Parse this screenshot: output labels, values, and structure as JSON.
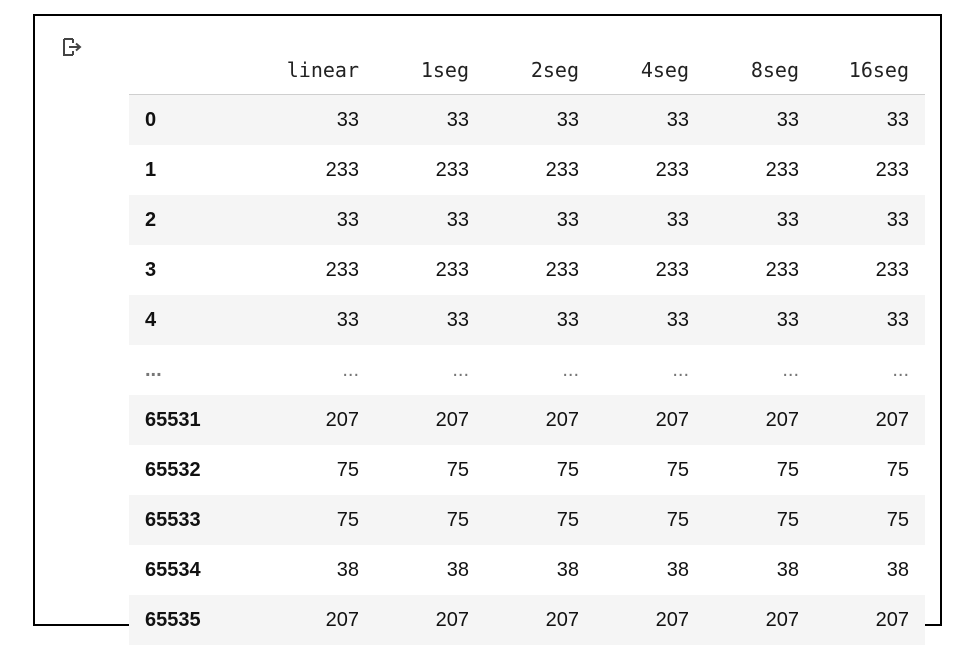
{
  "output_icon": "output-arrow-icon",
  "table": {
    "columns": [
      "linear",
      "1seg",
      "2seg",
      "4seg",
      "8seg",
      "16seg"
    ],
    "rows": [
      {
        "index": "0",
        "values": [
          "33",
          "33",
          "33",
          "33",
          "33",
          "33"
        ]
      },
      {
        "index": "1",
        "values": [
          "233",
          "233",
          "233",
          "233",
          "233",
          "233"
        ]
      },
      {
        "index": "2",
        "values": [
          "33",
          "33",
          "33",
          "33",
          "33",
          "33"
        ]
      },
      {
        "index": "3",
        "values": [
          "233",
          "233",
          "233",
          "233",
          "233",
          "233"
        ]
      },
      {
        "index": "4",
        "values": [
          "33",
          "33",
          "33",
          "33",
          "33",
          "33"
        ]
      },
      {
        "index": "...",
        "values": [
          "...",
          "...",
          "...",
          "...",
          "...",
          "..."
        ]
      },
      {
        "index": "65531",
        "values": [
          "207",
          "207",
          "207",
          "207",
          "207",
          "207"
        ]
      },
      {
        "index": "65532",
        "values": [
          "75",
          "75",
          "75",
          "75",
          "75",
          "75"
        ]
      },
      {
        "index": "65533",
        "values": [
          "75",
          "75",
          "75",
          "75",
          "75",
          "75"
        ]
      },
      {
        "index": "65534",
        "values": [
          "38",
          "38",
          "38",
          "38",
          "38",
          "38"
        ]
      },
      {
        "index": "65535",
        "values": [
          "207",
          "207",
          "207",
          "207",
          "207",
          "207"
        ]
      }
    ]
  }
}
